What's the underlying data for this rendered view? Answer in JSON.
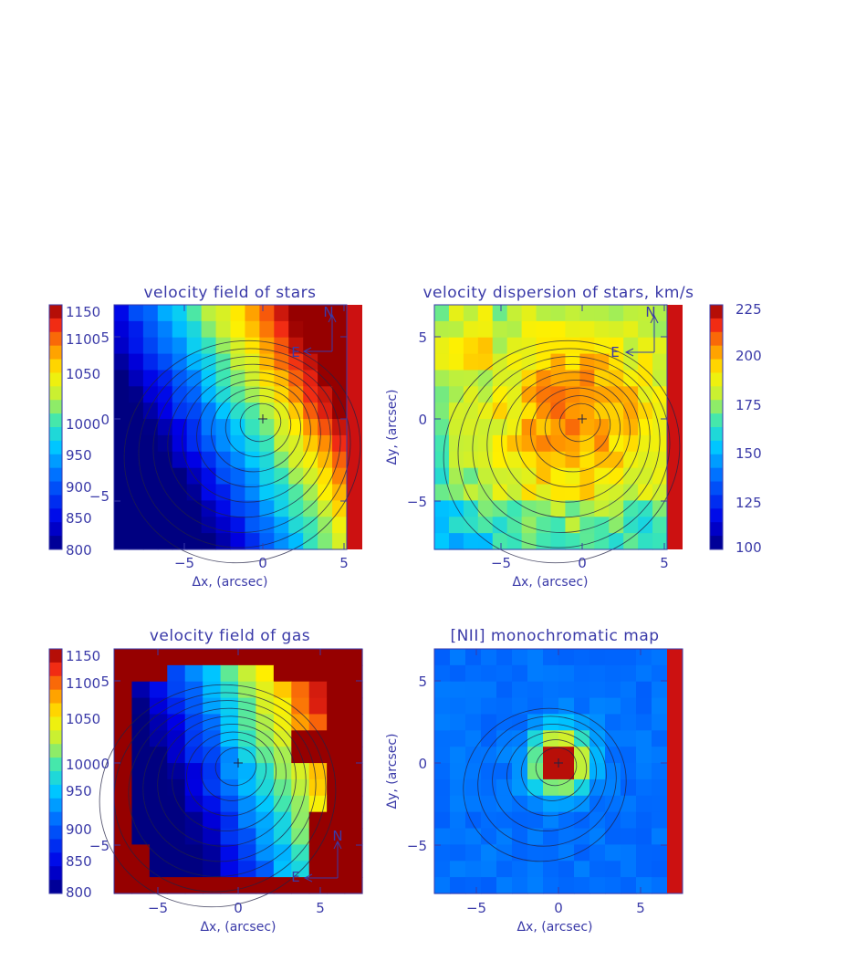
{
  "chart_data": [
    {
      "type": "heatmap",
      "title": "velocity field of stars",
      "xlabel": "Δx, (arcsec)",
      "ylabel": "",
      "xlim": [
        -9.5,
        6.2
      ],
      "ylim": [
        -8.0,
        6.8
      ],
      "xticks": [
        "−5",
        "0",
        "5"
      ],
      "yticks": [
        "−5",
        "0",
        "5"
      ],
      "colorbar": {
        "ticks": [
          "800",
          "850",
          "900",
          "950",
          "1000",
          "1050",
          "1100",
          "1150"
        ],
        "range": [
          800,
          1170
        ],
        "side": "left"
      },
      "compass": [
        "N",
        "E"
      ],
      "pattern": "stars_velocity",
      "grid": {
        "rows": 15,
        "cols": 16
      }
    },
    {
      "type": "heatmap",
      "title": "velocity dispersion of stars, km/s",
      "xlabel": "Δx, (arcsec)",
      "ylabel": "Δy, (arcsec)",
      "xlim": [
        -9.5,
        6.2
      ],
      "ylim": [
        -8.0,
        6.8
      ],
      "xticks": [
        "−5",
        "0",
        "5"
      ],
      "yticks": [
        "−5",
        "0",
        "5"
      ],
      "colorbar": {
        "ticks": [
          "100",
          "125",
          "150",
          "175",
          "200",
          "225"
        ],
        "range": [
          100,
          230
        ],
        "side": "right"
      },
      "compass": [
        "N",
        "E"
      ],
      "pattern": "stars_dispersion",
      "grid": {
        "rows": 15,
        "cols": 16
      }
    },
    {
      "type": "heatmap",
      "title": "velocity field of gas",
      "xlabel": "Δx, (arcsec)",
      "ylabel": "",
      "xlim": [
        -7.5,
        6.7
      ],
      "ylim": [
        -8.0,
        6.8
      ],
      "xticks": [
        "−5",
        "0",
        "5"
      ],
      "yticks": [
        "−5",
        "0",
        "5"
      ],
      "colorbar": {
        "ticks": [
          "800",
          "850",
          "900",
          "950",
          "1000",
          "1050",
          "1100",
          "1150"
        ],
        "range": [
          800,
          1170
        ],
        "side": "left"
      },
      "compass": [
        "N",
        "E"
      ],
      "pattern": "gas_velocity",
      "grid": {
        "rows": 15,
        "cols": 14
      }
    },
    {
      "type": "heatmap",
      "title": "[NII] monochromatic map",
      "xlabel": "Δx, (arcsec)",
      "ylabel": "Δy, (arcsec)",
      "xlim": [
        -8.0,
        6.7
      ],
      "ylim": [
        -8.0,
        6.8
      ],
      "xticks": [
        "−5",
        "0",
        "5"
      ],
      "yticks": [
        "−5",
        "0",
        "5"
      ],
      "colorbar": null,
      "compass": [],
      "pattern": "nii_map",
      "grid": {
        "rows": 15,
        "cols": 15
      }
    }
  ]
}
